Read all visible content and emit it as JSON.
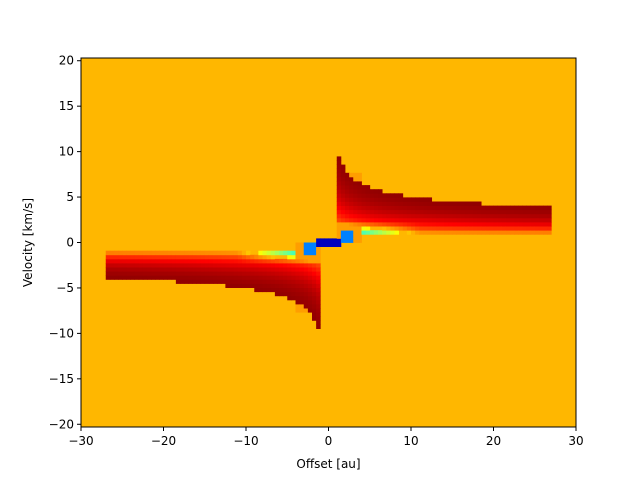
{
  "chart_data": {
    "type": "heatmap",
    "title": "",
    "xlabel": "Offset [au]",
    "ylabel": "Velocity [km/s]",
    "xlim": [
      -30,
      30
    ],
    "ylim": [
      -20.3,
      20.3
    ],
    "x_ticks": [
      -30,
      -20,
      -10,
      0,
      10,
      20,
      30
    ],
    "x_tick_labels": [
      "−30",
      "−20",
      "−10",
      "0",
      "10",
      "20",
      "30"
    ],
    "y_ticks": [
      -20,
      -15,
      -10,
      -5,
      0,
      5,
      10,
      15,
      20
    ],
    "y_tick_labels": [
      "−20",
      "−15",
      "−10",
      "−5",
      "0",
      "5",
      "10",
      "15",
      "20"
    ],
    "colormap": "jet",
    "background_color": "#ffb700",
    "grid": false,
    "colorbar": false,
    "features": [
      {
        "name": "emission-arm-upper",
        "x": [
          1,
          27
        ],
        "v": [
          0.8,
          6.8
        ]
      },
      {
        "name": "emission-arm-lower",
        "x": [
          -27,
          -1
        ],
        "v": [
          -6.8,
          -0.8
        ]
      },
      {
        "name": "central-absorption",
        "x": [
          -1.5,
          1.5
        ],
        "v": [
          -0.5,
          0.5
        ]
      }
    ]
  }
}
